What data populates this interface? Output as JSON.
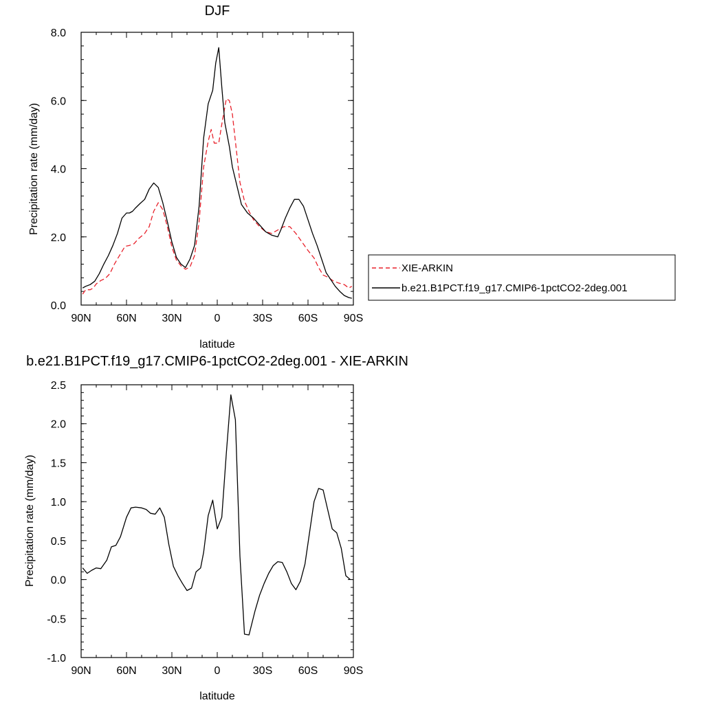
{
  "chart_data": [
    {
      "type": "line",
      "title": "DJF",
      "xlabel": "latitude",
      "ylabel": "Precipitation rate (mm/day)",
      "xlim": [
        90,
        -90
      ],
      "ylim": [
        0,
        8
      ],
      "xticks": [
        90,
        60,
        30,
        0,
        -30,
        -60,
        -90
      ],
      "xtick_labels": [
        "90N",
        "60N",
        "30N",
        "0",
        "30S",
        "60S",
        "90S"
      ],
      "yticks": [
        0,
        2,
        4,
        6,
        8
      ],
      "ytick_labels": [
        "0.0",
        "2.0",
        "4.0",
        "6.0",
        "8.0"
      ],
      "legend_position": "right",
      "series": [
        {
          "name": "XIE-ARKIN",
          "color": "#e8202a",
          "dash": "dashed",
          "x": [
            89,
            87,
            84,
            82,
            80,
            77,
            74,
            71,
            68,
            64,
            61,
            58,
            55,
            52,
            48,
            45,
            42,
            39,
            36,
            33,
            30,
            27,
            24,
            21,
            18,
            15,
            12,
            9,
            6,
            4,
            2,
            -1,
            -3,
            -6,
            -8,
            -10,
            -13,
            -15,
            -18,
            -21,
            -24,
            -28,
            -32,
            -36,
            -40,
            -44,
            -48,
            -52,
            -56,
            -60,
            -64,
            -67,
            -70,
            -73,
            -77,
            -80,
            -84,
            -87,
            -89
          ],
          "y": [
            0.32,
            0.45,
            0.45,
            0.5,
            0.62,
            0.72,
            0.78,
            0.92,
            1.2,
            1.5,
            1.72,
            1.75,
            1.8,
            1.95,
            2.1,
            2.3,
            2.75,
            3.0,
            2.8,
            2.3,
            1.7,
            1.32,
            1.15,
            1.05,
            1.12,
            1.45,
            2.45,
            4.05,
            4.8,
            5.15,
            4.75,
            4.75,
            5.3,
            6.05,
            6.0,
            5.6,
            4.4,
            3.6,
            3.05,
            2.75,
            2.5,
            2.3,
            2.15,
            2.1,
            2.2,
            2.3,
            2.3,
            2.1,
            1.85,
            1.6,
            1.38,
            1.1,
            0.88,
            0.82,
            0.7,
            0.65,
            0.6,
            0.5,
            0.55
          ]
        },
        {
          "name": "b.e21.B1PCT.f19_g17.CMIP6-1pctCO2-2deg.001",
          "color": "#000000",
          "dash": "solid",
          "x": [
            89,
            87,
            84,
            81,
            78,
            75,
            72,
            69,
            66,
            63,
            60,
            58,
            56,
            54,
            51,
            48,
            45,
            42,
            39,
            36,
            33,
            30,
            27,
            24,
            21,
            18,
            15,
            12,
            9,
            6,
            3,
            1,
            -1,
            -3,
            -5,
            -8,
            -10,
            -13,
            -16,
            -20,
            -24,
            -28,
            -32,
            -36,
            -40,
            -42,
            -45,
            -48,
            -51,
            -54,
            -57,
            -60,
            -63,
            -66,
            -69,
            -72,
            -75,
            -78,
            -81,
            -84,
            -87,
            -89
          ],
          "y": [
            0.5,
            0.55,
            0.6,
            0.7,
            0.92,
            1.2,
            1.45,
            1.75,
            2.1,
            2.55,
            2.7,
            2.7,
            2.75,
            2.85,
            2.98,
            3.1,
            3.4,
            3.58,
            3.45,
            3.0,
            2.45,
            1.85,
            1.4,
            1.2,
            1.1,
            1.35,
            1.75,
            2.9,
            4.9,
            5.9,
            6.3,
            7.1,
            7.55,
            6.4,
            5.35,
            4.65,
            4.05,
            3.5,
            2.95,
            2.7,
            2.55,
            2.35,
            2.15,
            2.05,
            2.0,
            2.2,
            2.55,
            2.85,
            3.1,
            3.1,
            2.9,
            2.5,
            2.1,
            1.75,
            1.35,
            0.95,
            0.75,
            0.55,
            0.4,
            0.28,
            0.22,
            0.2
          ]
        }
      ]
    },
    {
      "type": "line",
      "title": "b.e21.B1PCT.f19_g17.CMIP6-1pctCO2-2deg.001 - XIE-ARKIN",
      "xlabel": "latitude",
      "ylabel": "Precipitation rate (mm/day)",
      "xlim": [
        90,
        -90
      ],
      "ylim": [
        -1.0,
        2.5
      ],
      "xticks": [
        90,
        60,
        30,
        0,
        -30,
        -60,
        -90
      ],
      "xtick_labels": [
        "90N",
        "60N",
        "30N",
        "0",
        "30S",
        "60S",
        "90S"
      ],
      "yticks": [
        -1.0,
        -0.5,
        0.0,
        0.5,
        1.0,
        1.5,
        2.0,
        2.5
      ],
      "ytick_labels": [
        "-1.0",
        "-0.5",
        "0.0",
        "0.5",
        "1.0",
        "1.5",
        "2.0",
        "2.5"
      ],
      "series": [
        {
          "color": "#000000",
          "dash": "solid",
          "x": [
            89,
            86,
            83,
            80,
            77,
            73,
            70,
            67,
            64,
            60,
            57,
            54,
            50,
            47,
            44,
            41,
            38,
            35,
            32,
            29,
            26,
            23,
            20,
            17,
            14,
            11,
            9,
            6,
            3,
            0,
            -3,
            -6,
            -9,
            -12,
            -15,
            -18,
            -21,
            -25,
            -28,
            -31,
            -34,
            -37,
            -40,
            -43,
            -46,
            -49,
            -52,
            -55,
            -58,
            -61,
            -64,
            -67,
            -70,
            -73,
            -76,
            -79,
            -82,
            -85,
            -88
          ],
          "y": [
            0.15,
            0.08,
            0.12,
            0.15,
            0.14,
            0.25,
            0.42,
            0.44,
            0.55,
            0.8,
            0.92,
            0.93,
            0.92,
            0.9,
            0.85,
            0.84,
            0.92,
            0.8,
            0.45,
            0.17,
            0.05,
            -0.05,
            -0.14,
            -0.11,
            0.1,
            0.15,
            0.35,
            0.82,
            1.02,
            0.65,
            0.8,
            1.62,
            2.37,
            2.05,
            0.3,
            -0.7,
            -0.71,
            -0.4,
            -0.2,
            -0.05,
            0.08,
            0.18,
            0.23,
            0.22,
            0.1,
            -0.05,
            -0.13,
            -0.02,
            0.2,
            0.6,
            1.0,
            1.17,
            1.15,
            0.9,
            0.65,
            0.6,
            0.4,
            0.05,
            0.0
          ]
        }
      ]
    }
  ]
}
